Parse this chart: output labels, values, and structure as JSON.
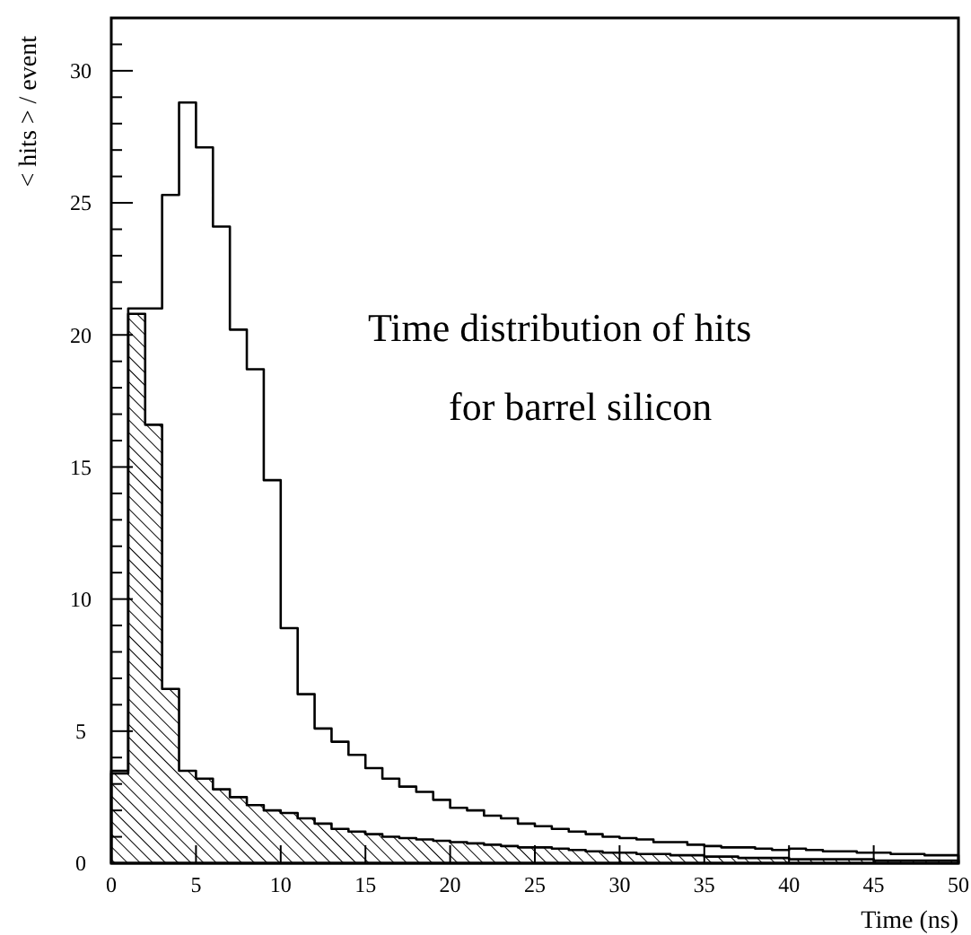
{
  "chart_data": {
    "type": "histogram",
    "title": "Time distribution of hits",
    "subtitle": "for barrel silicon",
    "xlabel": "Time (ns)",
    "ylabel": "< hits > / event",
    "bins": [
      0,
      1,
      2,
      3,
      4,
      5,
      6,
      7,
      8,
      9,
      10,
      11,
      12,
      13,
      14,
      15,
      16,
      17,
      18,
      19,
      20,
      21,
      22,
      23,
      24,
      25,
      26,
      27,
      28,
      29,
      30,
      31,
      32,
      33,
      34,
      35,
      36,
      37,
      38,
      39,
      40,
      41,
      42,
      43,
      44,
      45,
      46,
      47,
      48,
      49,
      50
    ],
    "series": [
      {
        "color": "#000000",
        "values": [
          3.5,
          21,
          21,
          25.3,
          28.8,
          27.1,
          24.1,
          20.2,
          18.7,
          14.5,
          8.9,
          6.4,
          5.1,
          4.6,
          4.1,
          3.6,
          3.2,
          2.9,
          2.7,
          2.4,
          2.1,
          2,
          1.8,
          1.7,
          1.5,
          1.4,
          1.3,
          1.2,
          1.1,
          1,
          0.95,
          0.9,
          0.8,
          0.8,
          0.7,
          0.65,
          0.6,
          0.6,
          0.55,
          0.5,
          0.55,
          0.5,
          0.45,
          0.45,
          0.4,
          0.4,
          0.35,
          0.35,
          0.3,
          0.3
        ]
      },
      {
        "color": "#000000",
        "values": [
          3.4,
          20.8,
          16.6,
          6.6,
          3.5,
          3.2,
          2.8,
          2.5,
          2.2,
          2,
          1.9,
          1.7,
          1.5,
          1.3,
          1.2,
          1.1,
          1,
          0.95,
          0.9,
          0.85,
          0.8,
          0.75,
          0.7,
          0.65,
          0.6,
          0.6,
          0.55,
          0.5,
          0.45,
          0.4,
          0.4,
          0.35,
          0.35,
          0.3,
          0.3,
          0.25,
          0.25,
          0.2,
          0.2,
          0.2,
          0.15,
          0.15,
          0.15,
          0.15,
          0.15,
          0.1,
          0.1,
          0.1,
          0.1,
          0.1
        ]
      }
    ],
    "xlim": [
      0,
      50
    ],
    "xticks": [
      0,
      5,
      10,
      15,
      20,
      25,
      30,
      35,
      40,
      45,
      50
    ],
    "ylim": [
      0,
      32
    ],
    "yticks": [
      0,
      {
        "value": 1,
        "label": null
      },
      {
        "value": 2,
        "label": null
      },
      {
        "value": 3,
        "label": null
      },
      {
        "value": 4,
        "label": null
      },
      5,
      {
        "value": 6,
        "label": null
      },
      {
        "value": 7,
        "label": null
      },
      {
        "value": 8,
        "label": null
      },
      {
        "value": 9,
        "label": null
      },
      10,
      {
        "value": 11,
        "label": null
      },
      {
        "value": 12,
        "label": null
      },
      {
        "value": 13,
        "label": null
      },
      {
        "value": 14,
        "label": null
      },
      15,
      {
        "value": 16,
        "label": null
      },
      {
        "value": 17,
        "label": null
      },
      {
        "value": 18,
        "label": null
      },
      {
        "value": 19,
        "label": null
      },
      20,
      {
        "value": 21,
        "label": null
      },
      {
        "value": 22,
        "label": null
      },
      {
        "value": 23,
        "label": null
      },
      {
        "value": 24,
        "label": null
      },
      25,
      {
        "value": 26,
        "label": null
      },
      {
        "value": 27,
        "label": null
      },
      {
        "value": 28,
        "label": null
      },
      {
        "value": 29,
        "label": null
      },
      30,
      {
        "value": 31,
        "label": null
      }
    ]
  }
}
